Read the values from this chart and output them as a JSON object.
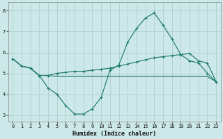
{
  "xlabel": "Humidex (Indice chaleur)",
  "bg_color": "#cde8e8",
  "line_color": "#1e7b6e",
  "grid_color": "#aed0d0",
  "xlim": [
    -0.5,
    23.5
  ],
  "ylim": [
    2.7,
    8.4
  ],
  "xticks": [
    0,
    1,
    2,
    3,
    4,
    5,
    6,
    7,
    8,
    9,
    10,
    11,
    12,
    13,
    14,
    15,
    16,
    17,
    18,
    19,
    20,
    21,
    22,
    23
  ],
  "yticks": [
    3,
    4,
    5,
    6,
    7,
    8
  ],
  "curve_dip_x": [
    0,
    1,
    2,
    3,
    4,
    5,
    6,
    7,
    8,
    9,
    10,
    11,
    12,
    13,
    14,
    15,
    16,
    17,
    18,
    19,
    20,
    21,
    22,
    23
  ],
  "curve_dip_y": [
    5.7,
    5.35,
    5.25,
    4.9,
    4.3,
    4.0,
    3.45,
    3.05,
    3.05,
    3.3,
    3.85,
    5.15,
    5.4,
    6.5,
    7.15,
    7.65,
    7.9,
    7.3,
    6.65,
    5.9,
    5.6,
    5.5,
    5.0,
    4.6
  ],
  "curve_rise_x": [
    0,
    1,
    2,
    3,
    4,
    5,
    6,
    7,
    8,
    9,
    10,
    11,
    12,
    13,
    14,
    15,
    16,
    17,
    18,
    19,
    20,
    21,
    22,
    23
  ],
  "curve_rise_y": [
    5.7,
    5.35,
    5.25,
    4.9,
    4.9,
    5.0,
    5.05,
    5.1,
    5.1,
    5.15,
    5.2,
    5.25,
    5.35,
    5.45,
    5.55,
    5.65,
    5.75,
    5.8,
    5.85,
    5.9,
    5.95,
    5.6,
    5.5,
    4.6
  ],
  "curve_flat_x": [
    0,
    1,
    2,
    3,
    4,
    5,
    6,
    7,
    8,
    9,
    10,
    11,
    12,
    13,
    14,
    15,
    16,
    17,
    18,
    19,
    20,
    21,
    22,
    23
  ],
  "curve_flat_y": [
    5.7,
    5.35,
    5.25,
    4.9,
    4.9,
    4.85,
    4.85,
    4.85,
    4.85,
    4.85,
    4.85,
    4.85,
    4.85,
    4.85,
    4.85,
    4.85,
    4.85,
    4.85,
    4.85,
    4.85,
    4.85,
    4.85,
    4.85,
    4.6
  ]
}
